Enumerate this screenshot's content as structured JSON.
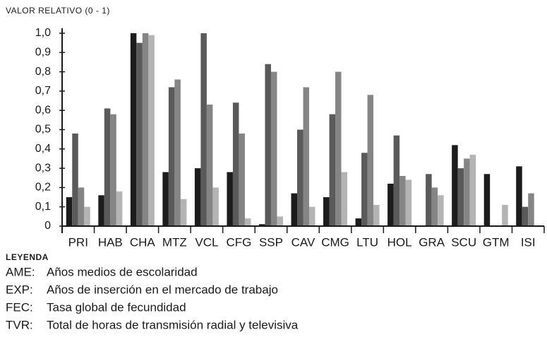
{
  "chart_data": {
    "type": "bar",
    "ylabel": "VALOR RELATIVO (0 - 1)",
    "legend_title": "LEYENDA",
    "categories": [
      "PRI",
      "HAB",
      "CHA",
      "MTZ",
      "VCL",
      "CFG",
      "SSP",
      "CAV",
      "CMG",
      "LTU",
      "HOL",
      "GRA",
      "SCU",
      "GTM",
      "ISI"
    ],
    "series": [
      {
        "name": "AME:",
        "description": "Años medios de escolaridad",
        "color": "#1c1c1c",
        "values": [
          0.15,
          0.16,
          1.0,
          0.28,
          0.3,
          0.28,
          0.01,
          0.17,
          0.15,
          0.04,
          0.22,
          0,
          0.42,
          0.27,
          0.31
        ]
      },
      {
        "name": "EXP:",
        "description": "Años de inserción en el mercado de trabajo",
        "color": "#5a5a5a",
        "values": [
          0.48,
          0.61,
          0.95,
          0.72,
          1.0,
          0.64,
          0.84,
          0.5,
          0.58,
          0.38,
          0.47,
          0.27,
          0.3,
          0,
          0.1
        ]
      },
      {
        "name": "FEC:",
        "description": "Tasa global de fecundidad",
        "color": "#858585",
        "values": [
          0.2,
          0.58,
          1.0,
          0.76,
          0.63,
          0.48,
          0.8,
          0.72,
          0.8,
          0.68,
          0.26,
          0.2,
          0.35,
          0,
          0.17
        ]
      },
      {
        "name": "TVR:",
        "description": "Total de horas de transmisión radial y televisiva",
        "color": "#b4b4b4",
        "values": [
          0.1,
          0.18,
          0.99,
          0.14,
          0.2,
          0.04,
          0.05,
          0.1,
          0.28,
          0.11,
          0.24,
          0.16,
          0.37,
          0.11,
          0
        ]
      }
    ],
    "ylim": [
      0,
      1.0
    ],
    "yticks": [
      0,
      {
        "value": 0.1,
        "label": "0,1"
      },
      {
        "value": 0.2,
        "label": "0,2"
      },
      {
        "value": 0.3,
        "label": "0,3"
      },
      {
        "value": 0.4,
        "label": "0,4"
      },
      {
        "value": 0.5,
        "label": "0,5"
      },
      {
        "value": 0.6,
        "label": "0,6"
      },
      {
        "value": 0.7,
        "label": "0,7"
      },
      {
        "value": 0.8,
        "label": "0,8"
      },
      {
        "value": 0.9,
        "label": "0,9"
      },
      {
        "value": 1.0,
        "label": "1,0"
      }
    ]
  }
}
